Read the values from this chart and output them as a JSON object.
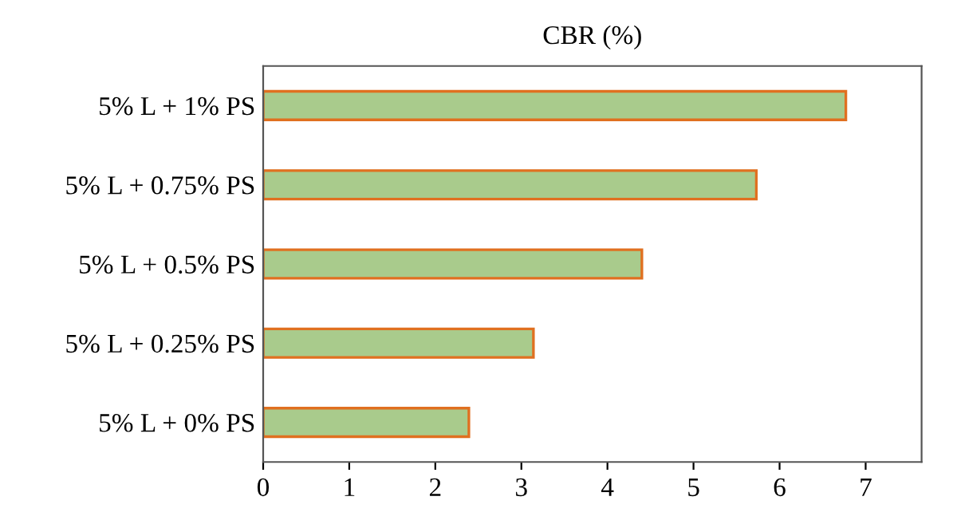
{
  "chart_data": {
    "type": "bar",
    "orientation": "horizontal",
    "title": "CBR (%)",
    "categories": [
      "5% L + 1% PS",
      "5% L + 0.75% PS",
      "5% L + 0.5% PS",
      "5% L + 0.25% PS",
      "5% L + 0% PS"
    ],
    "series": [
      {
        "color": "#a9cb8c",
        "values": [
          6.77,
          5.73,
          4.4,
          3.14,
          2.39
        ]
      }
    ],
    "xlim": [
      0,
      7.65
    ],
    "xticks": [
      0,
      1,
      2,
      3,
      4,
      5,
      6,
      7
    ],
    "grid": false
  }
}
